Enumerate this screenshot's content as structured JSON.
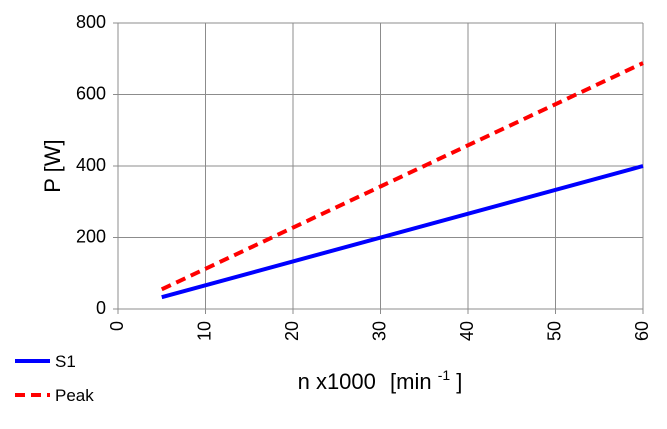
{
  "chart_data": {
    "type": "line",
    "title": "",
    "xlabel": "n x1000",
    "xlabel_unit": "[min",
    "xlabel_unit_sup": "-1",
    "xlabel_unit_close": "]",
    "ylabel": "P [W]",
    "xlim": [
      0,
      60
    ],
    "ylim": [
      0,
      800
    ],
    "xticks": [
      0,
      10,
      20,
      30,
      40,
      50,
      60
    ],
    "yticks": [
      0,
      200,
      400,
      600,
      800
    ],
    "grid": true,
    "legend_position": "bottom-left",
    "series": [
      {
        "name": "S1",
        "color": "#0000ff",
        "dash": "solid",
        "x": [
          5,
          60
        ],
        "y": [
          33,
          400
        ]
      },
      {
        "name": "Peak",
        "color": "#ff0000",
        "dash": "dashed",
        "x": [
          5,
          60
        ],
        "y": [
          55,
          688
        ]
      }
    ]
  },
  "colors": {
    "grid": "#8c8c8c",
    "axis": "#8c8c8c",
    "text": "#000000"
  }
}
